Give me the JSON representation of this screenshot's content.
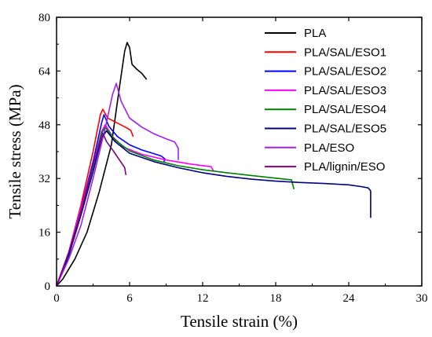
{
  "chart_data": {
    "type": "line",
    "xlabel": "Tensile strain (%)",
    "ylabel": "Tensile stress (MPa)",
    "xlim": [
      0,
      30
    ],
    "ylim": [
      0,
      80
    ],
    "xticks": [
      0,
      6,
      12,
      18,
      24,
      30
    ],
    "yticks": [
      0,
      16,
      32,
      48,
      64,
      80
    ],
    "grid": false,
    "legend_position": "top-right",
    "series": [
      {
        "name": "PLA",
        "color": "#000000",
        "points": [
          [
            0,
            0
          ],
          [
            0.5,
            2
          ],
          [
            1.5,
            8
          ],
          [
            2.5,
            16
          ],
          [
            3.5,
            28
          ],
          [
            4.5,
            42
          ],
          [
            5.2,
            60
          ],
          [
            5.6,
            70
          ],
          [
            5.8,
            72.5
          ],
          [
            6.0,
            71
          ],
          [
            6.2,
            66
          ],
          [
            6.6,
            64.5
          ],
          [
            7.0,
            63.3
          ],
          [
            7.4,
            61.5
          ]
        ]
      },
      {
        "name": "PLA/SAL/ESO1",
        "color": "#ff0000",
        "points": [
          [
            0,
            0
          ],
          [
            1,
            10
          ],
          [
            2,
            24
          ],
          [
            3,
            40
          ],
          [
            3.6,
            51
          ],
          [
            3.8,
            52.6
          ],
          [
            4.2,
            50
          ],
          [
            5,
            48.5
          ],
          [
            5.8,
            47
          ],
          [
            6.1,
            46.3
          ],
          [
            6.3,
            44.5
          ]
        ]
      },
      {
        "name": "PLA/SAL/ESO2",
        "color": "#0000ff",
        "points": [
          [
            0,
            0
          ],
          [
            1,
            10
          ],
          [
            2,
            23
          ],
          [
            3,
            37
          ],
          [
            3.7,
            48.5
          ],
          [
            3.9,
            51
          ],
          [
            4.3,
            47.5
          ],
          [
            5,
            44.5
          ],
          [
            6,
            42
          ],
          [
            7,
            40.5
          ],
          [
            8,
            39.4
          ],
          [
            8.6,
            38.7
          ],
          [
            8.9,
            37.8
          ],
          [
            8.8,
            36.8
          ]
        ]
      },
      {
        "name": "PLA/SAL/ESO3",
        "color": "#ff00ff",
        "points": [
          [
            0,
            0
          ],
          [
            1,
            10
          ],
          [
            2,
            23
          ],
          [
            3,
            36
          ],
          [
            3.7,
            46
          ],
          [
            4.0,
            48
          ],
          [
            4.6,
            44.5
          ],
          [
            5.5,
            41.3
          ],
          [
            7,
            39.2
          ],
          [
            9,
            37.5
          ],
          [
            11,
            36.3
          ],
          [
            12.7,
            35.5
          ],
          [
            12.9,
            34.2
          ]
        ]
      },
      {
        "name": "PLA/SAL/ESO4",
        "color": "#008000",
        "points": [
          [
            0,
            0
          ],
          [
            1,
            9
          ],
          [
            2,
            22
          ],
          [
            3,
            35.5
          ],
          [
            3.7,
            45.5
          ],
          [
            4.0,
            47.3
          ],
          [
            4.8,
            43.5
          ],
          [
            6,
            40.2
          ],
          [
            8,
            37.5
          ],
          [
            10,
            35.8
          ],
          [
            12,
            34.6
          ],
          [
            14,
            33.7
          ],
          [
            16,
            32.9
          ],
          [
            18,
            32.1
          ],
          [
            19.3,
            31.6
          ],
          [
            19.5,
            28.8
          ]
        ]
      },
      {
        "name": "PLA/SAL/ESO5",
        "color": "#000080",
        "points": [
          [
            0,
            0
          ],
          [
            1,
            9
          ],
          [
            2,
            21
          ],
          [
            3,
            34
          ],
          [
            3.7,
            44
          ],
          [
            4.1,
            46.2
          ],
          [
            4.8,
            43
          ],
          [
            6,
            39.5
          ],
          [
            8,
            37
          ],
          [
            10,
            35.2
          ],
          [
            12,
            33.7
          ],
          [
            14,
            32.6
          ],
          [
            16,
            31.8
          ],
          [
            18,
            31.2
          ],
          [
            20,
            30.8
          ],
          [
            22,
            30.5
          ],
          [
            24,
            30.1
          ],
          [
            25,
            29.6
          ],
          [
            25.6,
            29.2
          ],
          [
            25.8,
            28.3
          ],
          [
            25.8,
            20.3
          ]
        ]
      },
      {
        "name": "PLA/ESO",
        "color": "#a020f0",
        "points": [
          [
            0,
            0
          ],
          [
            1,
            8
          ],
          [
            2,
            18
          ],
          [
            3,
            32
          ],
          [
            4,
            47
          ],
          [
            4.6,
            57
          ],
          [
            4.9,
            60.3
          ],
          [
            5.3,
            55
          ],
          [
            6,
            50
          ],
          [
            7,
            47.3
          ],
          [
            8,
            45.3
          ],
          [
            9,
            43.8
          ],
          [
            9.7,
            42.9
          ],
          [
            10.0,
            41
          ],
          [
            10.0,
            37.5
          ]
        ]
      },
      {
        "name": "PLA/lignin/ESO",
        "color": "#800080",
        "points": [
          [
            0,
            0
          ],
          [
            1,
            10
          ],
          [
            2,
            22
          ],
          [
            3,
            36
          ],
          [
            3.5,
            42
          ],
          [
            3.8,
            45.5
          ],
          [
            4.1,
            43
          ],
          [
            4.7,
            40
          ],
          [
            5.3,
            36.8
          ],
          [
            5.6,
            35.2
          ],
          [
            5.7,
            33
          ]
        ]
      }
    ]
  }
}
